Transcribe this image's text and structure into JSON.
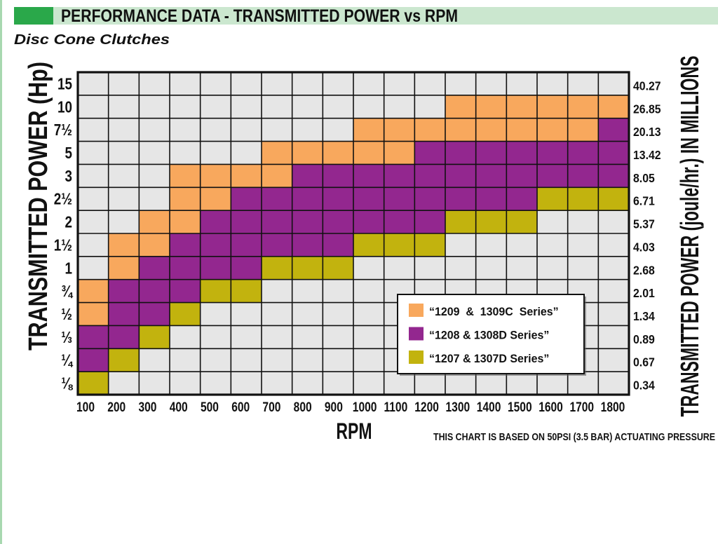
{
  "colors": {
    "header_block": "#2aa84a",
    "header_band": "#cbe7cf",
    "page_edge": "#a8d8b0",
    "empty_cell": "#e6e6e6",
    "grid_line": "#111111",
    "legend_background": "#ffffff"
  },
  "chart_data": {
    "type": "heatmap",
    "title": "PERFORMANCE DATA - TRANSMITTED POWER vs RPM",
    "subtitle": "Disc Cone Clutches",
    "xlabel": "RPM",
    "ylabel": "TRANSMITTED POWER (Hp)",
    "ylabel_right": "TRANSMITTED POWER (joule/hr.) IN MILLIONS",
    "note": "THIS CHART IS BASED ON 50PSI (3.5 BAR) ACTUATING PRESSURE",
    "x": [
      "100",
      "200",
      "300",
      "400",
      "500",
      "600",
      "700",
      "800",
      "900",
      "1000",
      "1100",
      "1200",
      "1300",
      "1400",
      "1500",
      "1600",
      "1700",
      "1800"
    ],
    "y": [
      "15",
      "10",
      "7½",
      "5",
      "3",
      "2½",
      "2",
      "1½",
      "1",
      "¾",
      "½",
      "⅓",
      "¼",
      "⅛"
    ],
    "y_right": [
      "40.27",
      "26.85",
      "20.13",
      "13.42",
      "8.05",
      "6.71",
      "5.37",
      "4.03",
      "2.68",
      "2.01",
      "1.34",
      "0.89",
      "0.67",
      "0.34"
    ],
    "series": [
      {
        "name": "“1209  &  1309C  Series”",
        "color": "#f8a85d"
      },
      {
        "name": "“1208 & 1308D Series”",
        "color": "#93278f"
      },
      {
        "name": "“1207 & 1307D Series”",
        "color": "#c2b30e"
      }
    ],
    "values": [
      [
        null,
        null,
        null,
        null,
        null,
        null,
        null,
        null,
        null,
        null,
        null,
        null,
        null,
        null,
        null,
        null,
        null,
        null
      ],
      [
        null,
        null,
        null,
        null,
        null,
        null,
        null,
        null,
        null,
        null,
        null,
        null,
        0,
        0,
        0,
        0,
        0,
        0
      ],
      [
        null,
        null,
        null,
        null,
        null,
        null,
        null,
        null,
        null,
        0,
        0,
        0,
        0,
        0,
        0,
        0,
        0,
        1
      ],
      [
        null,
        null,
        null,
        null,
        null,
        null,
        0,
        0,
        0,
        0,
        0,
        1,
        1,
        1,
        1,
        1,
        1,
        1
      ],
      [
        null,
        null,
        null,
        0,
        0,
        0,
        0,
        1,
        1,
        1,
        1,
        1,
        1,
        1,
        1,
        1,
        1,
        1
      ],
      [
        null,
        null,
        null,
        0,
        0,
        1,
        1,
        1,
        1,
        1,
        1,
        1,
        1,
        1,
        1,
        2,
        2,
        2
      ],
      [
        null,
        null,
        0,
        0,
        1,
        1,
        1,
        1,
        1,
        1,
        1,
        1,
        2,
        2,
        2,
        null,
        null,
        null
      ],
      [
        null,
        0,
        0,
        1,
        1,
        1,
        1,
        1,
        1,
        2,
        2,
        2,
        null,
        null,
        null,
        null,
        null,
        null
      ],
      [
        null,
        0,
        1,
        1,
        1,
        1,
        2,
        2,
        2,
        null,
        null,
        null,
        null,
        null,
        null,
        null,
        null,
        null
      ],
      [
        0,
        1,
        1,
        1,
        2,
        2,
        null,
        null,
        null,
        null,
        null,
        null,
        null,
        null,
        null,
        null,
        null,
        null
      ],
      [
        0,
        1,
        1,
        2,
        null,
        null,
        null,
        null,
        null,
        null,
        null,
        null,
        null,
        null,
        null,
        null,
        null,
        null
      ],
      [
        1,
        1,
        2,
        null,
        null,
        null,
        null,
        null,
        null,
        null,
        null,
        null,
        null,
        null,
        null,
        null,
        null,
        null
      ],
      [
        1,
        2,
        null,
        null,
        null,
        null,
        null,
        null,
        null,
        null,
        null,
        null,
        null,
        null,
        null,
        null,
        null,
        null
      ],
      [
        2,
        null,
        null,
        null,
        null,
        null,
        null,
        null,
        null,
        null,
        null,
        null,
        null,
        null,
        null,
        null,
        null,
        null
      ]
    ],
    "legend": "bottom-right",
    "grid": true
  }
}
